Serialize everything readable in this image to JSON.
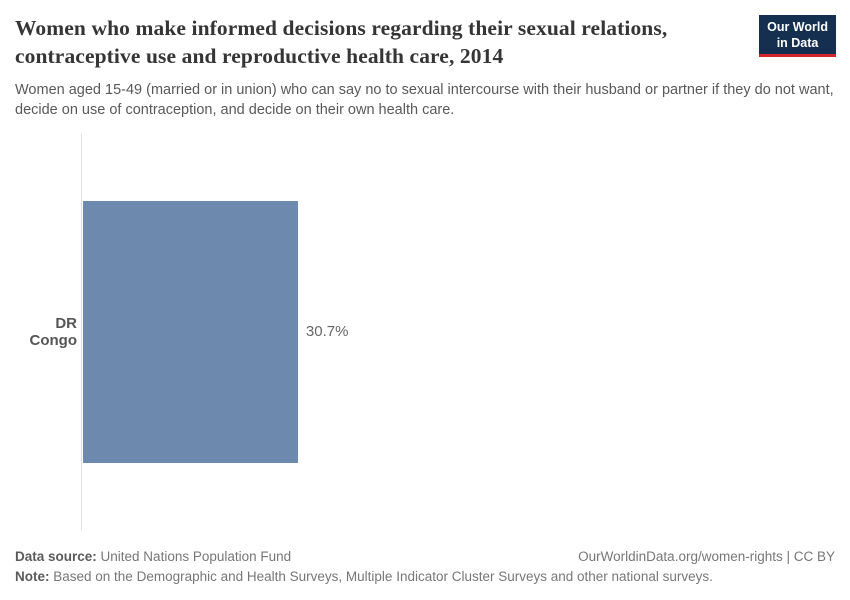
{
  "header": {
    "title": "Women who make informed decisions regarding their sexual relations, contraceptive use and reproductive health care, 2014",
    "subtitle": "Women aged 15-49 (married or in union) who can say no to sexual intercourse with their husband or partner if they do not want, decide on use of contraception, and decide on their own health care.",
    "logo": {
      "line1": "Our World",
      "line2": "in Data",
      "bg_color": "#152f51",
      "accent_color": "#d1242b"
    }
  },
  "chart_data": {
    "type": "bar",
    "orientation": "horizontal",
    "categories": [
      "DR Congo"
    ],
    "values": [
      30.7
    ],
    "value_labels": [
      "30.7%"
    ],
    "title": "Women who make informed decisions regarding their sexual relations, contraceptive use and reproductive health care, 2014",
    "xlabel": "",
    "ylabel": "",
    "xlim": [
      0,
      100
    ],
    "grid": false,
    "legend": false,
    "bar_color": "#6e89ae",
    "axis_line_color": "#dedede"
  },
  "footer": {
    "source_label": "Data source:",
    "source_value": " United Nations Population Fund",
    "attribution": "OurWorldinData.org/women-rights | CC BY",
    "note_label": "Note:",
    "note_value": " Based on the Demographic and Health Surveys, Multiple Indicator Cluster Surveys and other national surveys."
  }
}
